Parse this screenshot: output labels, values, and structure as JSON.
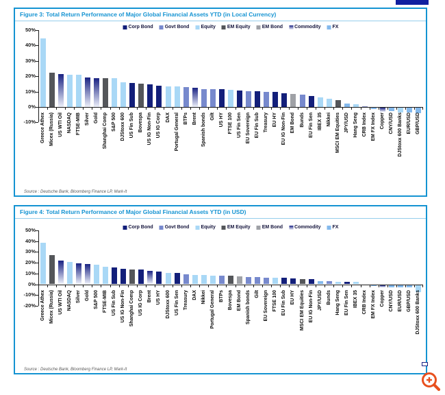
{
  "ui": {
    "panel_border_color": "#1493d2",
    "title_color": "#1493d2",
    "source_color": "#595959",
    "axis_color": "#1a1a1a",
    "zoom_icon_color": "#e8501e",
    "header_accent_color": "#101fa0"
  },
  "legend": [
    "Corp Bond",
    "Govt Bond",
    "Equity",
    "EM Equity",
    "EM Bond",
    "Commodity",
    "FX"
  ],
  "category_colors": {
    "Corp Bond": "#131f7a",
    "Govt Bond": "#7789cd",
    "Equity": "#a9d8f6",
    "EM Equity": "#54565a",
    "EM Bond": "#9fa1a6",
    "Commodity": "#1a2383",
    "FX": "#84b9ec"
  },
  "commodity_gradient_bottom": "#edf0fa",
  "chart_data": [
    {
      "type": "bar",
      "title": "Figure 3: Total Return Performance of Major Global Financial Assets YTD (in Local Currency)",
      "source": "Source : Deutsche Bank, Bloomberg Finance LP, Mark-It",
      "ylim": [
        -10,
        50
      ],
      "ytick_step": 10,
      "ytick_suffix": "%",
      "grid": false,
      "legend_position": "top-center",
      "bars": [
        {
          "label": "Greece Athex",
          "value": 44.5,
          "category": "Equity"
        },
        {
          "label": "Micex (Russia)",
          "value": 22.3,
          "category": "EM Equity"
        },
        {
          "label": "US WTI Oil",
          "value": 21.5,
          "category": "Commodity"
        },
        {
          "label": "NASDAQ",
          "value": 21.2,
          "category": "Equity"
        },
        {
          "label": "FTSE-MIB",
          "value": 21.1,
          "category": "Equity"
        },
        {
          "label": "Silver",
          "value": 19.0,
          "category": "Commodity"
        },
        {
          "label": "Gold",
          "value": 18.9,
          "category": "Commodity"
        },
        {
          "label": "Shanghai Comp",
          "value": 18.8,
          "category": "EM Equity"
        },
        {
          "label": "S&P 500",
          "value": 18.6,
          "category": "Equity"
        },
        {
          "label": "DJStoxx 600",
          "value": 15.9,
          "category": "Equity"
        },
        {
          "label": "US Fin Sub",
          "value": 15.7,
          "category": "Corp Bond"
        },
        {
          "label": "Bovespa",
          "value": 15.1,
          "category": "EM Equity"
        },
        {
          "label": "US IG Non-Fin",
          "value": 14.6,
          "category": "Corp Bond"
        },
        {
          "label": "US IG Corp",
          "value": 13.7,
          "category": "Corp Bond"
        },
        {
          "label": "DAX",
          "value": 13.5,
          "category": "Equity"
        },
        {
          "label": "Portugal General",
          "value": 13.2,
          "category": "Equity"
        },
        {
          "label": "BTPs",
          "value": 12.9,
          "category": "Govt Bond"
        },
        {
          "label": "Brent",
          "value": 12.5,
          "category": "Commodity"
        },
        {
          "label": "Spanish bonds",
          "value": 11.7,
          "category": "Govt Bond"
        },
        {
          "label": "Gilt",
          "value": 11.5,
          "category": "Govt Bond"
        },
        {
          "label": "US HY",
          "value": 11.4,
          "category": "Corp Bond"
        },
        {
          "label": "FTSE 100",
          "value": 11.0,
          "category": "Equity"
        },
        {
          "label": "US Fin Sen",
          "value": 10.5,
          "category": "Corp Bond"
        },
        {
          "label": "EU Sovereign",
          "value": 10.3,
          "category": "Govt Bond"
        },
        {
          "label": "EU Fin Sub",
          "value": 10.2,
          "category": "Corp Bond"
        },
        {
          "label": "Treasury",
          "value": 9.8,
          "category": "Govt Bond"
        },
        {
          "label": "EU HY",
          "value": 9.6,
          "category": "Corp Bond"
        },
        {
          "label": "EU IG Non-Fin",
          "value": 8.9,
          "category": "Corp Bond"
        },
        {
          "label": "EM Bond",
          "value": 8.3,
          "category": "EM Bond"
        },
        {
          "label": "Bunds",
          "value": 8.1,
          "category": "Govt Bond"
        },
        {
          "label": "EU Fin Sen",
          "value": 7.2,
          "category": "Corp Bond"
        },
        {
          "label": "IBEX 35",
          "value": 6.3,
          "category": "Equity"
        },
        {
          "label": "Nikkei",
          "value": 5.5,
          "category": "Equity"
        },
        {
          "label": "MSCI EM Equities",
          "value": 4.4,
          "category": "EM Equity"
        },
        {
          "label": "JPY/USD",
          "value": 2.4,
          "category": "FX"
        },
        {
          "label": "Hang Seng",
          "value": 2.0,
          "category": "Equity"
        },
        {
          "label": "CRB Index",
          "value": 0.3,
          "category": "Commodity"
        },
        {
          "label": "EM FX Index",
          "value": -0.8,
          "category": "FX"
        },
        {
          "label": "Copper",
          "value": -2.6,
          "category": "Commodity"
        },
        {
          "label": "CNY/USD",
          "value": -2.4,
          "category": "FX"
        },
        {
          "label": "DJStoxx 600 Banks",
          "value": -3.0,
          "category": "Equity"
        },
        {
          "label": "EUR/USD",
          "value": -3.1,
          "category": "FX"
        },
        {
          "label": "GBP/USD",
          "value": -3.6,
          "category": "FX"
        }
      ]
    },
    {
      "type": "bar",
      "title": "Figure 4: Total Return Performance of Major Global Financial Assets YTD (in USD)",
      "source": "Source : Deutsche Bank, Bloomberg Finance LP, Mark-It",
      "ylim": [
        -20,
        50
      ],
      "ytick_step": 10,
      "ytick_suffix": "%",
      "grid": false,
      "legend_position": "top-center",
      "bars": [
        {
          "label": "Greece Athex",
          "value": 38.4,
          "category": "Equity"
        },
        {
          "label": "Micex (Russia)",
          "value": 26.8,
          "category": "EM Equity"
        },
        {
          "label": "US WTI Oil",
          "value": 21.7,
          "category": "Commodity"
        },
        {
          "label": "NASDAQ",
          "value": 21.0,
          "category": "Equity"
        },
        {
          "label": "Silver",
          "value": 19.2,
          "category": "Commodity"
        },
        {
          "label": "Gold",
          "value": 19.0,
          "category": "Commodity"
        },
        {
          "label": "S&P 500",
          "value": 18.4,
          "category": "Equity"
        },
        {
          "label": "FTSE-MIB",
          "value": 16.0,
          "category": "Equity"
        },
        {
          "label": "US Fin Sub",
          "value": 15.7,
          "category": "Corp Bond"
        },
        {
          "label": "US IG Non-Fin",
          "value": 14.5,
          "category": "Corp Bond"
        },
        {
          "label": "Shanghai Comp",
          "value": 14.0,
          "category": "EM Equity"
        },
        {
          "label": "US IG Corp",
          "value": 13.8,
          "category": "Corp Bond"
        },
        {
          "label": "Brent",
          "value": 12.4,
          "category": "Commodity"
        },
        {
          "label": "US HY",
          "value": 11.7,
          "category": "Corp Bond"
        },
        {
          "label": "DJStoxx 600",
          "value": 10.8,
          "category": "Equity"
        },
        {
          "label": "US Fin Sen",
          "value": 10.3,
          "category": "Corp Bond"
        },
        {
          "label": "Treasury",
          "value": 9.3,
          "category": "Govt Bond"
        },
        {
          "label": "DAX",
          "value": 8.4,
          "category": "Equity"
        },
        {
          "label": "Nikkei",
          "value": 8.3,
          "category": "Equity"
        },
        {
          "label": "Portugal General",
          "value": 8.2,
          "category": "Equity"
        },
        {
          "label": "BTPs",
          "value": 7.9,
          "category": "Govt Bond"
        },
        {
          "label": "Bovespa",
          "value": 7.7,
          "category": "EM Equity"
        },
        {
          "label": "EM Bond",
          "value": 7.6,
          "category": "EM Bond"
        },
        {
          "label": "Spanish bonds",
          "value": 7.0,
          "category": "Govt Bond"
        },
        {
          "label": "Gilt",
          "value": 6.6,
          "category": "Govt Bond"
        },
        {
          "label": "EU Sovereign",
          "value": 6.3,
          "category": "Govt Bond"
        },
        {
          "label": "FTSE 100",
          "value": 6.2,
          "category": "Equity"
        },
        {
          "label": "EU Fin Sub",
          "value": 6.1,
          "category": "Corp Bond"
        },
        {
          "label": "EU HY",
          "value": 5.6,
          "category": "Corp Bond"
        },
        {
          "label": "MSCI EM Equities",
          "value": 5.0,
          "category": "EM Equity"
        },
        {
          "label": "EU IG Non-Fin",
          "value": 4.6,
          "category": "Corp Bond"
        },
        {
          "label": "JPY/USD",
          "value": 3.0,
          "category": "FX"
        },
        {
          "label": "Bunds",
          "value": 2.9,
          "category": "Govt Bond"
        },
        {
          "label": "Hang Seng",
          "value": 2.4,
          "category": "Equity"
        },
        {
          "label": "EU Fin Sen",
          "value": 2.3,
          "category": "Corp Bond"
        },
        {
          "label": "IBEX 35",
          "value": 2.0,
          "category": "Equity"
        },
        {
          "label": "CRB Index",
          "value": 0.2,
          "category": "Commodity"
        },
        {
          "label": "EM FX Index",
          "value": -0.9,
          "category": "FX"
        },
        {
          "label": "Copper",
          "value": -2.2,
          "category": "Commodity"
        },
        {
          "label": "CNY/USD",
          "value": -2.0,
          "category": "FX"
        },
        {
          "label": "EUR/USD",
          "value": -2.4,
          "category": "FX"
        },
        {
          "label": "GBP/USD",
          "value": -2.5,
          "category": "FX"
        },
        {
          "label": "DJStoxx 600 Banks",
          "value": -6.8,
          "category": "Equity"
        }
      ]
    }
  ]
}
